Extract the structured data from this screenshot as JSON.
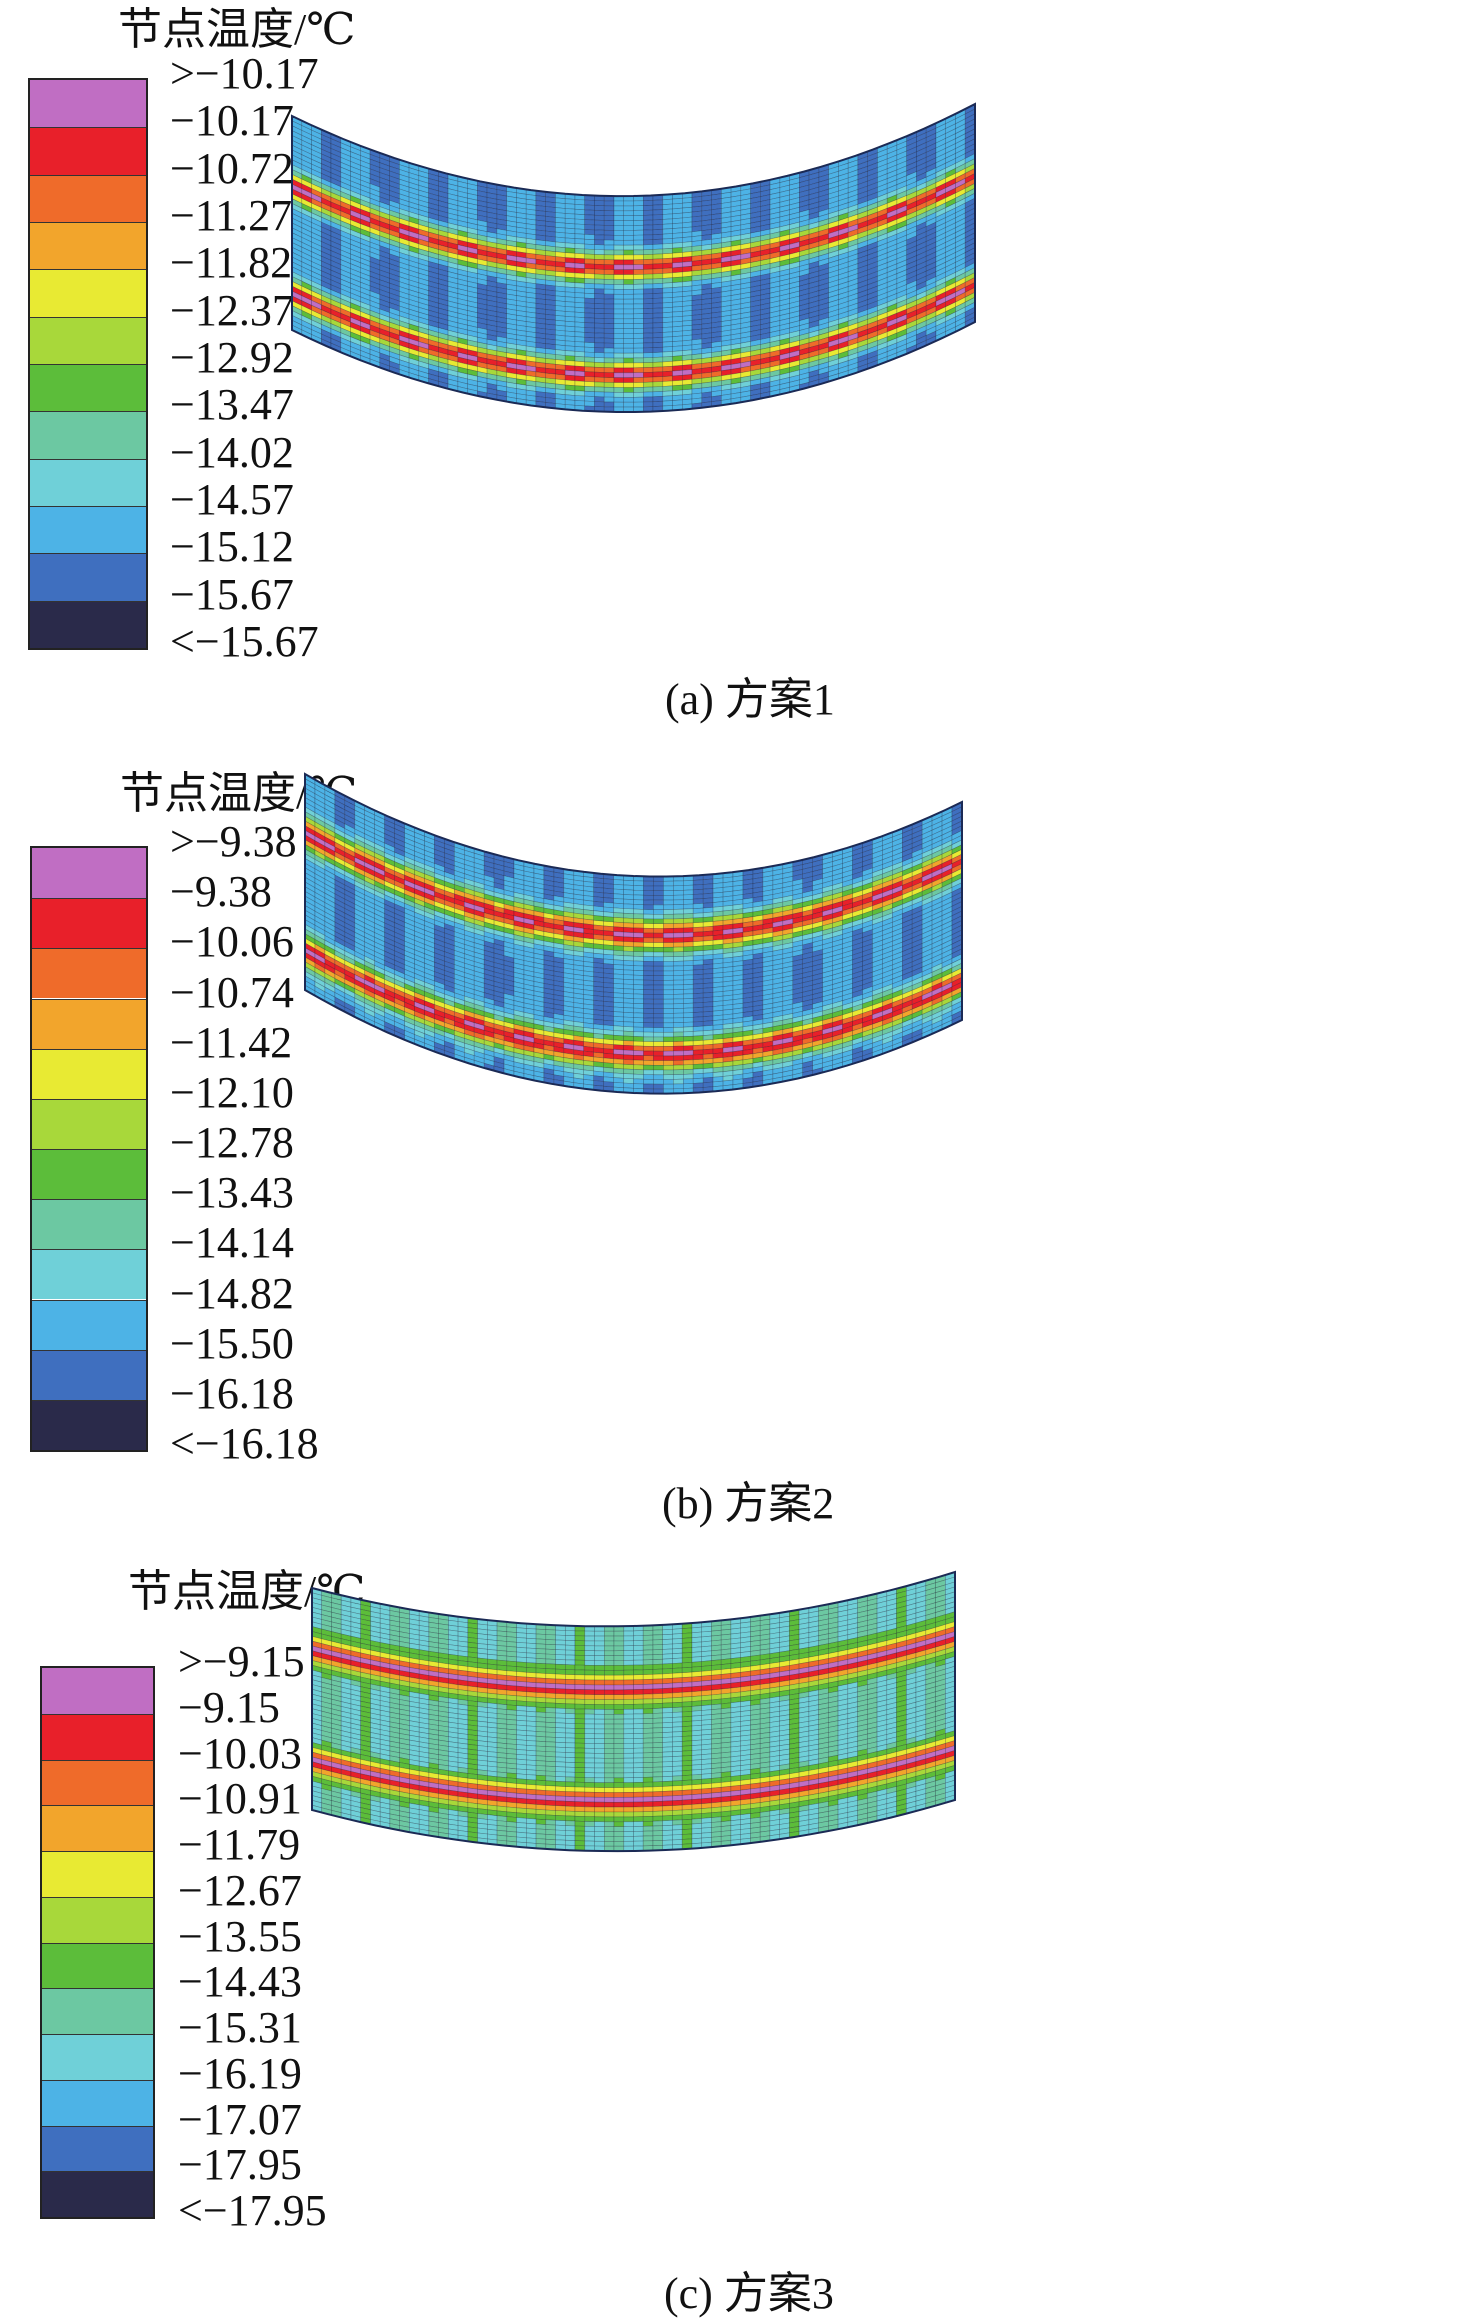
{
  "colors": [
    "#c06ec3",
    "#e8202a",
    "#ef6b2a",
    "#f2a52c",
    "#e8ea33",
    "#a8d83a",
    "#5cbd3a",
    "#6cc8a2",
    "#6fd0d8",
    "#4db3e6",
    "#3f6fbf",
    "#2a2a4a"
  ],
  "panels": [
    {
      "legend_title": "节点温度/℃",
      "ticks": [
        ">−10.17",
        "−10.17",
        "−10.72",
        "−11.27",
        "−11.82",
        "−12.37",
        "−12.92",
        "−13.47",
        "−14.02",
        "−14.57",
        "−15.12",
        "−15.67",
        "<−15.67"
      ],
      "caption": "(a) 方案1"
    },
    {
      "legend_title": "节点温度/℃",
      "ticks": [
        ">−9.38",
        "−9.38",
        "−10.06",
        "−10.74",
        "−11.42",
        "−12.10",
        "−12.78",
        "−13.43",
        "−14.14",
        "−14.82",
        "−15.50",
        "−16.18",
        "<−16.18"
      ],
      "caption": "(b) 方案2"
    },
    {
      "legend_title": "节点温度/℃",
      "ticks": [
        ">−9.15",
        "−9.15",
        "−10.03",
        "−10.91",
        "−11.79",
        "−12.67",
        "−13.55",
        "−14.43",
        "−15.31",
        "−16.19",
        "−17.07",
        "−17.95",
        "<−17.95"
      ],
      "caption": "(c) 方案3"
    }
  ]
}
